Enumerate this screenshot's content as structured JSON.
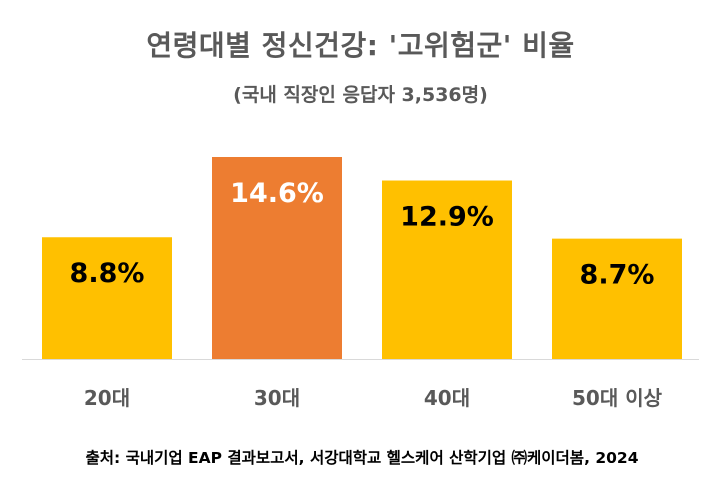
{
  "title": "연령대별 정신건강: '고위험군' 비율",
  "subtitle": "(국내 직장인 응답자 3,536명)",
  "source": "출처: 국내기업 EAP 결과보고서, 서강대학교 헬스케어 산학기업 ㈜케이더봄, 2024",
  "colors": {
    "bar": "#FFC000",
    "highlight": "#ED7D31",
    "value_label_dark": "#000000",
    "value_label_light": "#ffffff",
    "axis_label": "#595959",
    "baseline": "#D9D9D9"
  },
  "chart_data": {
    "type": "bar",
    "categories": [
      "20대",
      "30대",
      "40대",
      "50대 이상"
    ],
    "values": [
      8.8,
      14.6,
      12.9,
      8.7
    ],
    "value_labels": [
      "8.8%",
      "14.6%",
      "12.9%",
      "8.7%"
    ],
    "highlight_index": 1,
    "ylim": [
      0,
      14.6
    ],
    "title": "연령대별 정신건강: '고위험군' 비율",
    "xlabel": "",
    "ylabel": "",
    "grid": false,
    "legend": "none"
  }
}
